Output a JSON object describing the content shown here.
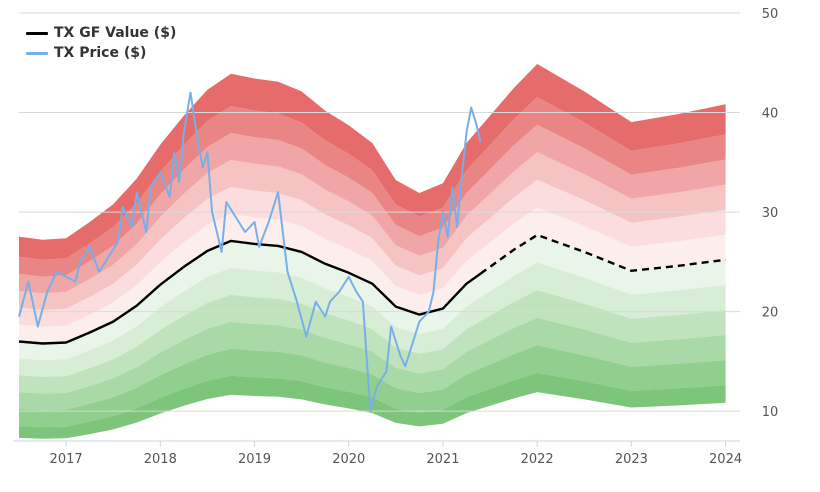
{
  "chart_data": {
    "type": "line",
    "title": "",
    "xlabel": "",
    "ylabel": "",
    "x_ticks": [
      "2017",
      "2018",
      "2019",
      "2020",
      "2021",
      "2022",
      "2023",
      "2024"
    ],
    "y_ticks": [
      "10",
      "20",
      "30",
      "40",
      "50"
    ],
    "xlim": [
      2016.5,
      2024.1
    ],
    "ylim": [
      7,
      50
    ],
    "grid": "horizontal",
    "legend": "top-left",
    "series": [
      {
        "name": "TX GF Value ($)",
        "color": "#000000",
        "x": [
          2016.5,
          2016.75,
          2017.0,
          2017.25,
          2017.5,
          2017.75,
          2018.0,
          2018.25,
          2018.5,
          2018.75,
          2019.0,
          2019.25,
          2019.5,
          2019.75,
          2020.0,
          2020.25,
          2020.5,
          2020.75,
          2021.0,
          2021.25,
          2021.5,
          2021.75,
          2022.0,
          2022.5,
          2023.0,
          2023.5,
          2024.0
        ],
        "values": [
          17.0,
          16.8,
          16.9,
          17.9,
          19.0,
          20.6,
          22.7,
          24.5,
          26.1,
          27.1,
          26.8,
          26.6,
          26.0,
          24.8,
          23.9,
          22.8,
          20.5,
          19.7,
          20.3,
          22.8,
          24.5,
          26.2,
          27.7,
          26.0,
          24.1,
          24.6,
          25.2
        ],
        "dashed_from": 2021.4
      },
      {
        "name": "TX Price ($)",
        "color": "#77b0e8",
        "x": [
          2016.5,
          2016.6,
          2016.7,
          2016.8,
          2016.9,
          2017.0,
          2017.1,
          2017.15,
          2017.25,
          2017.35,
          2017.45,
          2017.55,
          2017.6,
          2017.7,
          2017.75,
          2017.85,
          2017.9,
          2018.0,
          2018.1,
          2018.15,
          2018.2,
          2018.25,
          2018.32,
          2018.4,
          2018.45,
          2018.5,
          2018.55,
          2018.65,
          2018.7,
          2018.8,
          2018.9,
          2019.0,
          2019.05,
          2019.15,
          2019.25,
          2019.35,
          2019.45,
          2019.55,
          2019.65,
          2019.75,
          2019.8,
          2019.9,
          2020.0,
          2020.08,
          2020.15,
          2020.2,
          2020.23,
          2020.3,
          2020.4,
          2020.45,
          2020.55,
          2020.6,
          2020.7,
          2020.75,
          2020.85,
          2020.9,
          2020.95,
          2021.0,
          2021.05,
          2021.1,
          2021.15,
          2021.2,
          2021.25,
          2021.3,
          2021.35,
          2021.4
        ],
        "values": [
          19.5,
          23.0,
          18.5,
          22.0,
          24.0,
          23.5,
          23.0,
          25.0,
          26.5,
          24.0,
          25.5,
          27.0,
          30.5,
          28.5,
          32.0,
          28.0,
          32.5,
          34.0,
          31.5,
          36.0,
          33.0,
          38.0,
          42.0,
          37.0,
          34.5,
          36.0,
          30.0,
          26.0,
          31.0,
          29.5,
          28.0,
          29.0,
          26.5,
          29.0,
          32.0,
          24.0,
          21.0,
          17.5,
          21.0,
          19.5,
          21.0,
          22.0,
          23.5,
          22.0,
          21.0,
          14.0,
          10.0,
          12.5,
          14.0,
          18.5,
          15.5,
          14.5,
          17.5,
          19.0,
          20.0,
          22.0,
          27.0,
          30.0,
          27.5,
          32.5,
          28.5,
          33.5,
          38.0,
          40.5,
          39.0,
          37.0
        ]
      }
    ],
    "bands": {
      "upper_mults": [
        1.1,
        1.2,
        1.3,
        1.4,
        1.5
      ],
      "lower_mults": [
        0.9,
        0.8,
        0.7,
        0.6,
        0.5
      ],
      "upper_colors": [
        "#fdeeee",
        "#fbdddd",
        "#f6c3c3",
        "#f0a6a6",
        "#ea8585",
        "#e66b6b"
      ],
      "lower_colors": [
        "#eaf5ea",
        "#d7edd6",
        "#c0e3be",
        "#a8d9a6",
        "#90cf8e",
        "#7cc57a"
      ]
    }
  }
}
